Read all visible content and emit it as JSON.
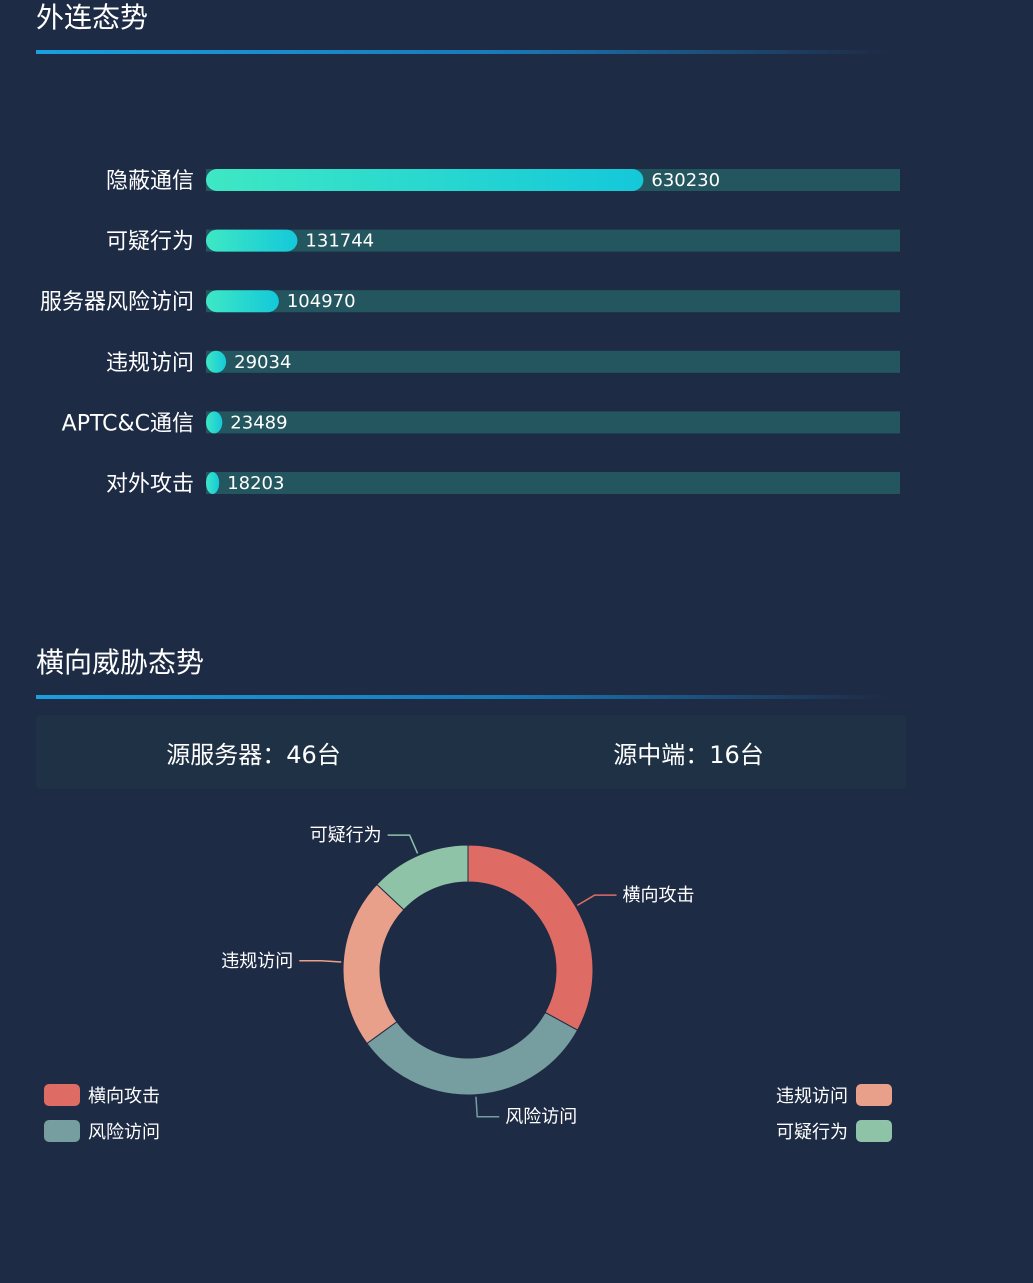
{
  "outbound": {
    "title": "外连态势",
    "chart_data": {
      "type": "bar",
      "orientation": "horizontal",
      "categories": [
        "隐蔽通信",
        "可疑行为",
        "服务器风险访问",
        "违规访问",
        "APTC&C通信",
        "对外攻击"
      ],
      "values": [
        630230,
        131744,
        104970,
        29034,
        23489,
        18203
      ],
      "xlim": [
        0,
        1000000
      ],
      "grid": false,
      "colors": {
        "bar_start": "#3ee8c4",
        "bar_end": "#14c8da",
        "track": "#24565f"
      }
    }
  },
  "lateral": {
    "title": "横向威胁态势",
    "stats": {
      "source_server": "源服务器：46台",
      "source_terminal": "源中端：16台"
    },
    "chart_data": {
      "type": "pie",
      "variant": "donut",
      "slices": [
        {
          "label": "横向攻击",
          "value": 33,
          "color": "#df6c64"
        },
        {
          "label": "风险访问",
          "value": 32,
          "color": "#769da0"
        },
        {
          "label": "违规访问",
          "value": 22,
          "color": "#e8a08a"
        },
        {
          "label": "可疑行为",
          "value": 13,
          "color": "#8fc3a8"
        }
      ],
      "legend": {
        "placement": "bottom-split",
        "left": [
          "横向攻击",
          "风险访问"
        ],
        "right": [
          "违规访问",
          "可疑行为"
        ]
      }
    }
  }
}
